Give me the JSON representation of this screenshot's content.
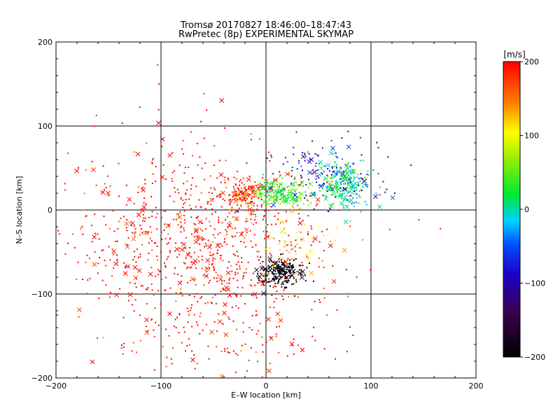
{
  "chart_data": {
    "type": "scatter",
    "title": "Tromsø 20170827 18:46:00–18:47:43",
    "subtitle": "RwPretec (8p) EXPERIMENTAL SKYMAP",
    "xlabel": "E–W location [km]",
    "ylabel": "N–S location [km]",
    "xlim": [
      -200,
      200
    ],
    "ylim": [
      -200,
      200
    ],
    "xticks": [
      "−200",
      "−100",
      "0",
      "100",
      "200"
    ],
    "yticks": [
      "−200",
      "−100",
      "0",
      "100",
      "200"
    ],
    "grid": true,
    "colorbar": {
      "label": "[m/s]",
      "range": [
        -200,
        200
      ],
      "ticks": [
        "200",
        "100",
        "0",
        "−100",
        "−200"
      ],
      "colormap": "black-purple-blue-cyan-green-yellow-red"
    },
    "clusters": [
      {
        "cx": -50,
        "cy": -40,
        "sx": 60,
        "sy": 50,
        "n": 700,
        "value": 200
      },
      {
        "cx": -120,
        "cy": 0,
        "sx": 40,
        "sy": 60,
        "n": 150,
        "value": 200
      },
      {
        "cx": -20,
        "cy": 20,
        "sx": 12,
        "sy": 10,
        "n": 160,
        "value": 180
      },
      {
        "cx": 15,
        "cy": 20,
        "sx": 14,
        "sy": 8,
        "n": 230,
        "value": 40
      },
      {
        "cx": 75,
        "cy": 30,
        "sx": 12,
        "sy": 14,
        "n": 220,
        "value": 10
      },
      {
        "cx": 12,
        "cy": -75,
        "sx": 10,
        "sy": 9,
        "n": 220,
        "value": -200
      },
      {
        "cx": 55,
        "cy": 40,
        "sx": 30,
        "sy": 20,
        "n": 150,
        "value": -80
      },
      {
        "cx": -40,
        "cy": -150,
        "sx": 60,
        "sy": 25,
        "n": 120,
        "value": 200
      },
      {
        "cx": 30,
        "cy": -40,
        "sx": 20,
        "sy": 20,
        "n": 60,
        "value": 120
      }
    ]
  }
}
